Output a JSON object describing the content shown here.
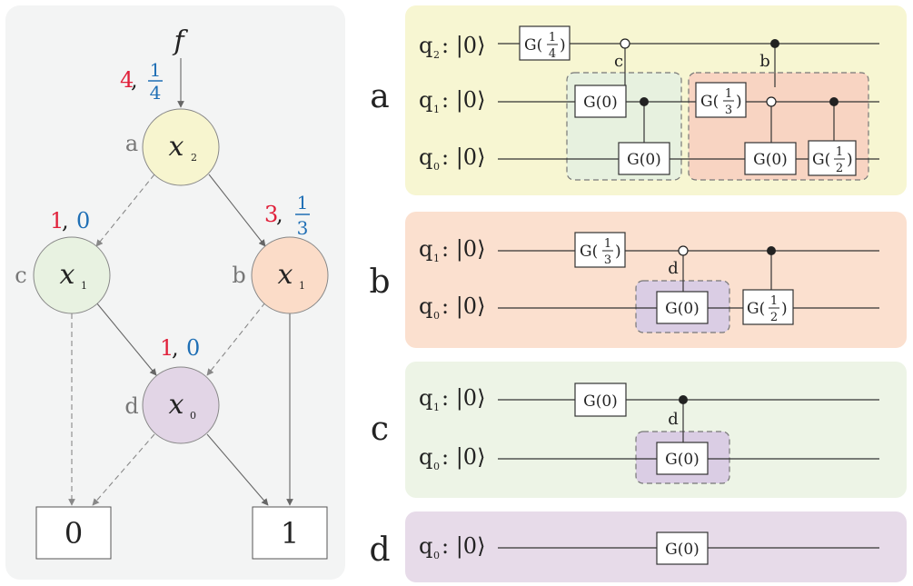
{
  "colors": {
    "left_panel_bg": "#f3f4f4",
    "node_a": "#f7f5cf",
    "node_b": "#fbdcc8",
    "node_c": "#e8f2e1",
    "node_d": "#e2d5e6",
    "panel_a_bg": "#f7f6d2",
    "panel_b_bg": "#fbe0cf",
    "panel_c_bg": "#edf4e6",
    "panel_d_bg": "#e7dbe9",
    "region_green": "#e7f1df",
    "region_orange": "#f8d4c2",
    "region_purple": "#dacde4",
    "red": "#e0203a",
    "blue": "#1f6fb5"
  },
  "dd": {
    "root_label": "f",
    "root_weights": {
      "red": "4",
      "sep": ",",
      "blue_num": "1",
      "blue_den": "4"
    },
    "nodes": {
      "a": {
        "name": "a",
        "var": "x",
        "sub": "2"
      },
      "b": {
        "name": "b",
        "var": "x",
        "sub": "1",
        "red": "3",
        "sep": ",",
        "blue_num": "1",
        "blue_den": "3"
      },
      "c": {
        "name": "c",
        "var": "x",
        "sub": "1",
        "red": "1",
        "sep": ",",
        "blue": "0"
      },
      "d": {
        "name": "d",
        "var": "x",
        "sub": "0",
        "red": "1",
        "sep": ",",
        "blue": "0"
      }
    },
    "terminals": {
      "zero": "0",
      "one": "1"
    }
  },
  "panels": {
    "a": {
      "side_label": "a",
      "qubits": [
        "q",
        "q",
        "q"
      ],
      "qsubs": [
        "2",
        "1",
        "0"
      ],
      "ket": ": |0⟩",
      "gate_g": "G(",
      "gate_close": ")",
      "frac_1_4": {
        "num": "1",
        "den": "4"
      },
      "frac_1_3": {
        "num": "1",
        "den": "3"
      },
      "frac_1_2": {
        "num": "1",
        "den": "2"
      },
      "g0": "G(0)",
      "ctrl_c": "c",
      "ctrl_b": "b"
    },
    "b": {
      "side_label": "b",
      "qsubs": [
        "1",
        "0"
      ],
      "ket": ": |0⟩",
      "g0": "G(0)",
      "ctrl_d": "d"
    },
    "c": {
      "side_label": "c",
      "qsubs": [
        "1",
        "0"
      ],
      "ket": ": |0⟩",
      "g0": "G(0)",
      "ctrl_d": "d"
    },
    "d": {
      "side_label": "d",
      "qsubs": [
        "0"
      ],
      "ket": ": |0⟩",
      "g0": "G(0)"
    }
  }
}
